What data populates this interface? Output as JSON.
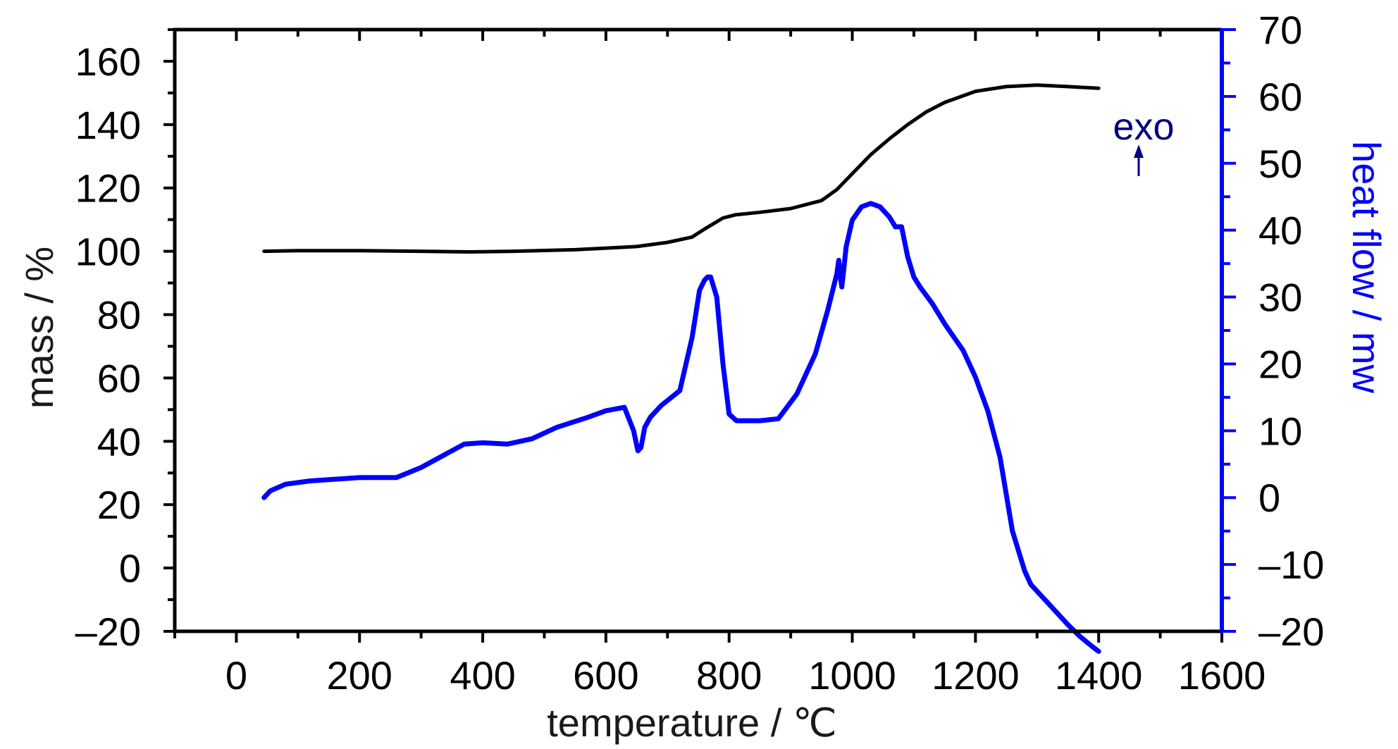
{
  "chart_data": {
    "type": "line",
    "title": "",
    "xlabel": "temperature / ℃",
    "ylabel_left": "mass / %",
    "ylabel_right": "heat flow / mw",
    "xlim": [
      -100,
      1600
    ],
    "ylim_left": [
      -20,
      170
    ],
    "ylim_right": [
      -20,
      70
    ],
    "x_ticks": [
      "0",
      "200",
      "400",
      "600",
      "800",
      "1000",
      "1200",
      "1400",
      "1600"
    ],
    "y_left_ticks": [
      "–20",
      "0",
      "20",
      "40",
      "60",
      "80",
      "100",
      "120",
      "140",
      "160"
    ],
    "y_right_ticks": [
      "–20",
      "–10",
      "0",
      "10",
      "20",
      "30",
      "40",
      "50",
      "60",
      "70"
    ],
    "grid": false,
    "annotation": "exo",
    "colors": {
      "mass": "#000000",
      "heat_flow": "#0000ff",
      "right_axis": "#0000ff",
      "annotation": "#000080"
    },
    "series": [
      {
        "axis": "left",
        "color": "#000000",
        "x": [
          45,
          100,
          200,
          300,
          380,
          450,
          550,
          650,
          700,
          740,
          760,
          790,
          810,
          850,
          900,
          950,
          975,
          1000,
          1030,
          1060,
          1090,
          1120,
          1150,
          1200,
          1250,
          1300,
          1350,
          1400
        ],
        "y": [
          100,
          100.2,
          100.2,
          100,
          99.8,
          100,
          100.5,
          101.5,
          102.8,
          104.5,
          107,
          110.5,
          111.5,
          112.3,
          113.5,
          116,
          119.5,
          124.5,
          130.5,
          135.5,
          140,
          144,
          147,
          150.5,
          152,
          152.5,
          152,
          151.5
        ]
      },
      {
        "axis": "right",
        "color": "#0000ff",
        "x": [
          45,
          55,
          80,
          120,
          200,
          260,
          300,
          340,
          370,
          400,
          440,
          480,
          520,
          570,
          600,
          630,
          645,
          652,
          657,
          663,
          672,
          690,
          720,
          740,
          752,
          760,
          765,
          770,
          780,
          790,
          800,
          812,
          825,
          850,
          880,
          910,
          940,
          960,
          975,
          978,
          980,
          983,
          986,
          990,
          1000,
          1015,
          1030,
          1045,
          1060,
          1070,
          1080,
          1090,
          1100,
          1110,
          1130,
          1150,
          1180,
          1200,
          1220,
          1240,
          1260,
          1280,
          1290,
          1295,
          1300,
          1315,
          1330,
          1350,
          1370,
          1390,
          1400
        ],
        "y": [
          0,
          1,
          2,
          2.5,
          3,
          3,
          4.5,
          6.5,
          8,
          8.2,
          8,
          8.8,
          10.5,
          12,
          13,
          13.5,
          10,
          7,
          7.5,
          10.5,
          12,
          13.8,
          16,
          24,
          31,
          32.5,
          33,
          33,
          30,
          20,
          12.5,
          11.5,
          11.5,
          11.5,
          11.8,
          15.5,
          21.5,
          28,
          33.5,
          35.5,
          33.5,
          31.5,
          34,
          37.5,
          41.5,
          43.5,
          44,
          43.5,
          42,
          40.5,
          40.5,
          36,
          33,
          31.5,
          29,
          26,
          22,
          18,
          13,
          6,
          -5,
          -11,
          -13,
          -13.5,
          -14,
          -15.5,
          -17,
          -19,
          -20.8,
          -22.3,
          -23
        ]
      }
    ]
  }
}
